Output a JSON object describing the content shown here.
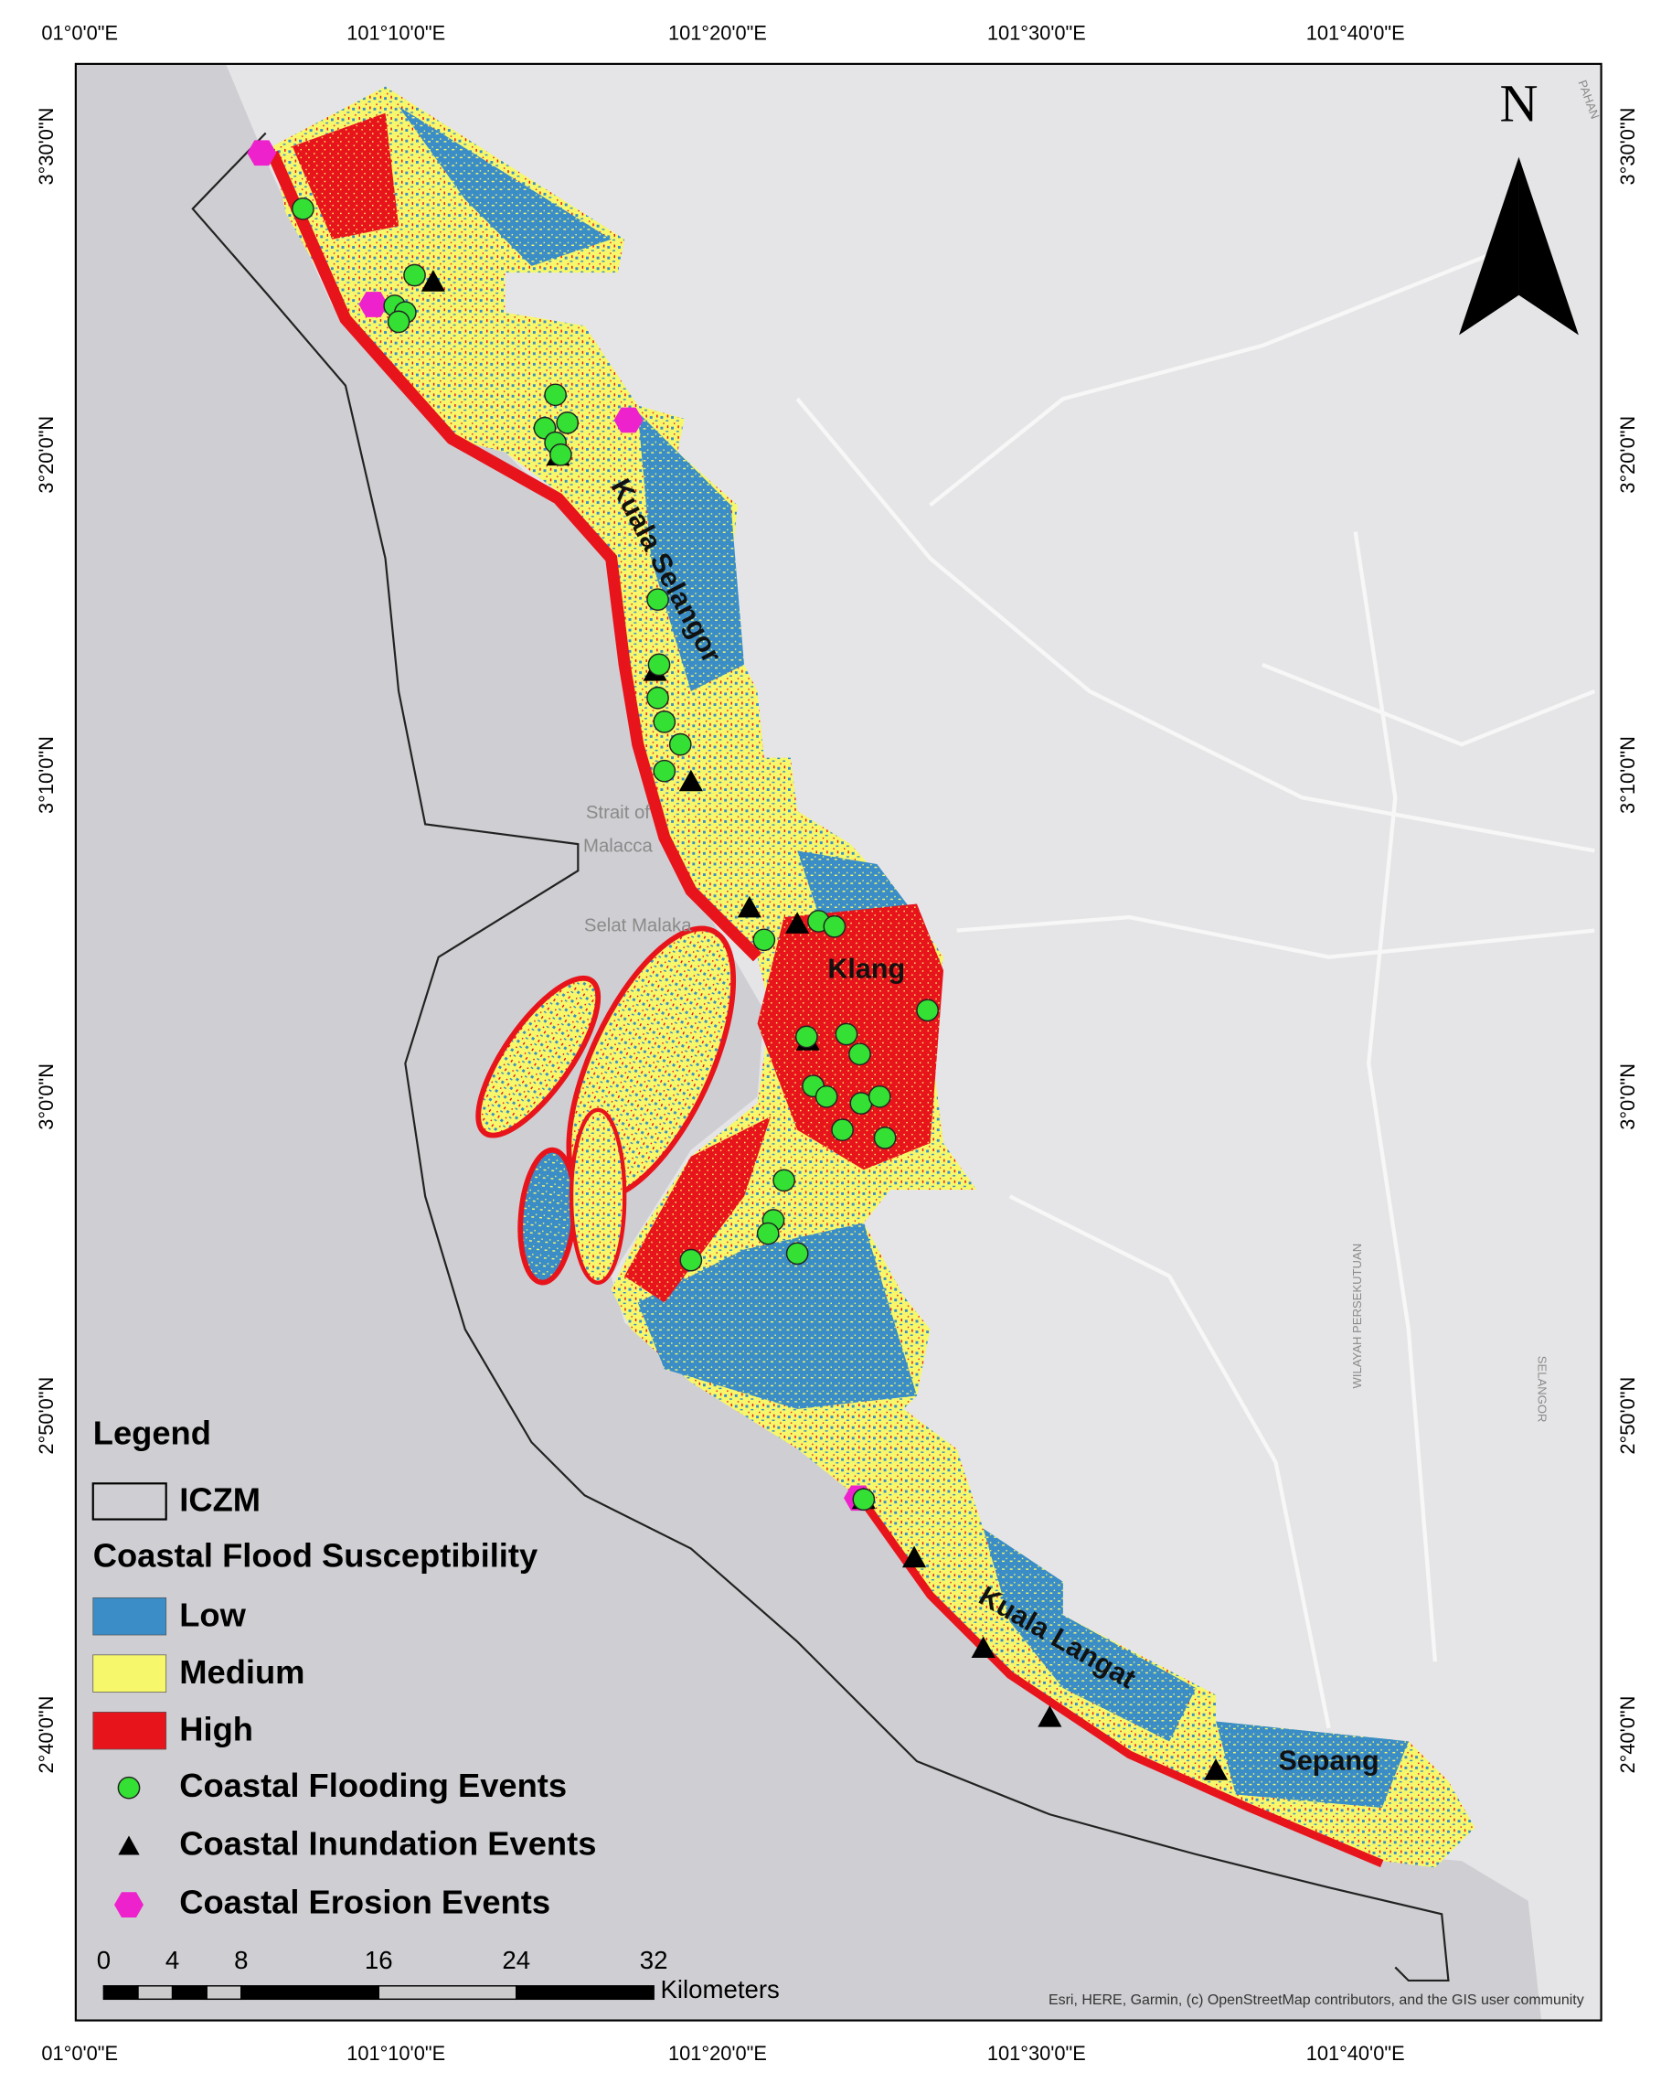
{
  "axes": {
    "top": [
      "01°0'0\"E",
      "101°10'0\"E",
      "101°20'0\"E",
      "101°30'0\"E",
      "101°40'0\"E"
    ],
    "bottom": [
      "01°0'0\"E",
      "101°10'0\"E",
      "101°20'0\"E",
      "101°30'0\"E",
      "101°40'0\"E"
    ],
    "left": [
      "3°30'0\"N",
      "3°20'0\"N",
      "3°10'0\"N",
      "3°0'0\"N",
      "2°50'0\"N",
      "2°40'0\"N"
    ],
    "right": [
      "3°30'0\"N",
      "3°20'0\"N",
      "3°10'0\"N",
      "3°0'0\"N",
      "2°50'0\"N",
      "2°40'0\"N"
    ]
  },
  "north_arrow": "N",
  "place_labels": [
    "Kuala Selangor",
    "Klang",
    "Kuala Langat",
    "Sepang"
  ],
  "basemap_labels": [
    "Strait of",
    "Malacca",
    "Selat Malaka",
    "WILAYAH PERSEKUTUAN",
    "SELANGOR",
    "PAHAN"
  ],
  "legend": {
    "title": "Legend",
    "iczm": "ICZM",
    "subtitle": "Coastal Flood Susceptibility",
    "classes": [
      {
        "label": "Low",
        "color": "#3a8dc6"
      },
      {
        "label": "Medium",
        "color": "#f7f76c"
      },
      {
        "label": "High",
        "color": "#e8141c"
      }
    ],
    "events": [
      {
        "label": "Coastal Flooding Events",
        "color": "#33e033"
      },
      {
        "label": "Coastal Inundation Events",
        "color": "#000000"
      },
      {
        "label": "Coastal Erosion Events",
        "color": "#ee22cc"
      }
    ]
  },
  "scale_bar": {
    "ticks": [
      0,
      4,
      8,
      16,
      24,
      32
    ],
    "unit": "Kilometers"
  },
  "attribution": "Esri, HERE, Garmin, (c) OpenStreetMap contributors, and the GIS user community"
}
